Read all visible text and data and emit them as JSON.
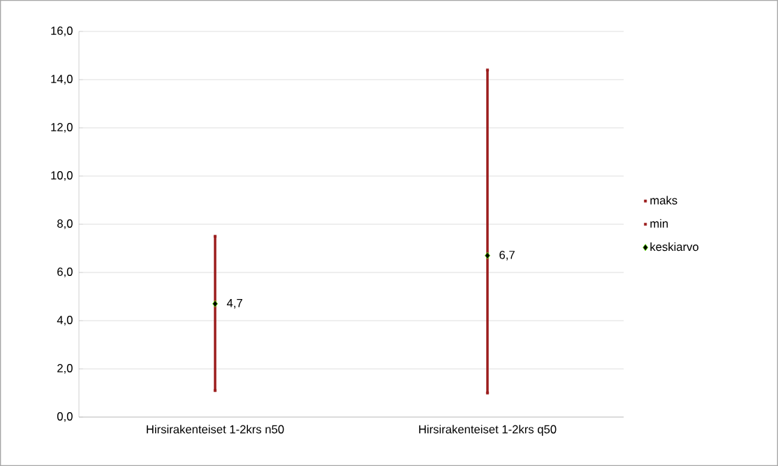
{
  "chart_data": {
    "type": "scatter",
    "categories": [
      "Hirsirakenteiset 1-2krs n50",
      "Hirsirakenteiset 1-2krs q50"
    ],
    "series": [
      {
        "name": "maks",
        "type": "scatter",
        "marker": "square",
        "color": "#9b1c1c",
        "values": [
          7.5,
          14.4
        ]
      },
      {
        "name": "min",
        "type": "scatter",
        "marker": "square",
        "color": "#9b1c1c",
        "values": [
          1.1,
          1.0
        ]
      },
      {
        "name": "keskiarvo",
        "type": "scatter",
        "marker": "diamond",
        "color": "#000000",
        "values": [
          4.7,
          6.7
        ],
        "value_labels": [
          "4,7",
          "6,7"
        ]
      }
    ],
    "ylim": [
      0,
      16
    ],
    "yticks": [
      {
        "value": 0,
        "label": "0,0"
      },
      {
        "value": 2,
        "label": "2,0"
      },
      {
        "value": 4,
        "label": "4,0"
      },
      {
        "value": 6,
        "label": "6,0"
      },
      {
        "value": 8,
        "label": "8,0"
      },
      {
        "value": 10,
        "label": "10,0"
      },
      {
        "value": 12,
        "label": "12,0"
      },
      {
        "value": 14,
        "label": "14,0"
      },
      {
        "value": 16,
        "label": "16,0"
      }
    ],
    "grid": "y",
    "legend": "right"
  }
}
